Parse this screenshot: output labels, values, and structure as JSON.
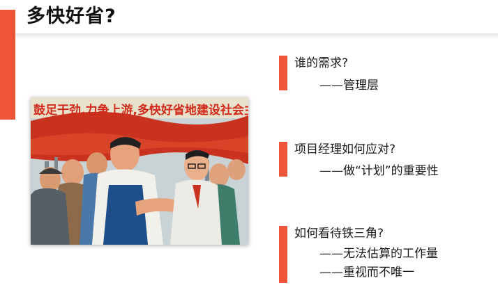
{
  "slide": {
    "title": "多快好省?",
    "accent_color": "#f0553c",
    "poster": {
      "banner_text": "鼓足干劲,力争上游,多快好省地建设社会主义!",
      "description_icon": "propaganda-poster-illustration"
    },
    "points": [
      {
        "question": "谁的需求?",
        "answers": [
          "——管理层"
        ]
      },
      {
        "question": "项目经理如何应对?",
        "answers": [
          "——做“计划”的重要性"
        ]
      },
      {
        "question": "如何看待铁三角?",
        "answers": [
          "——无法估算的工作量",
          "——重视而不唯一"
        ]
      }
    ]
  }
}
